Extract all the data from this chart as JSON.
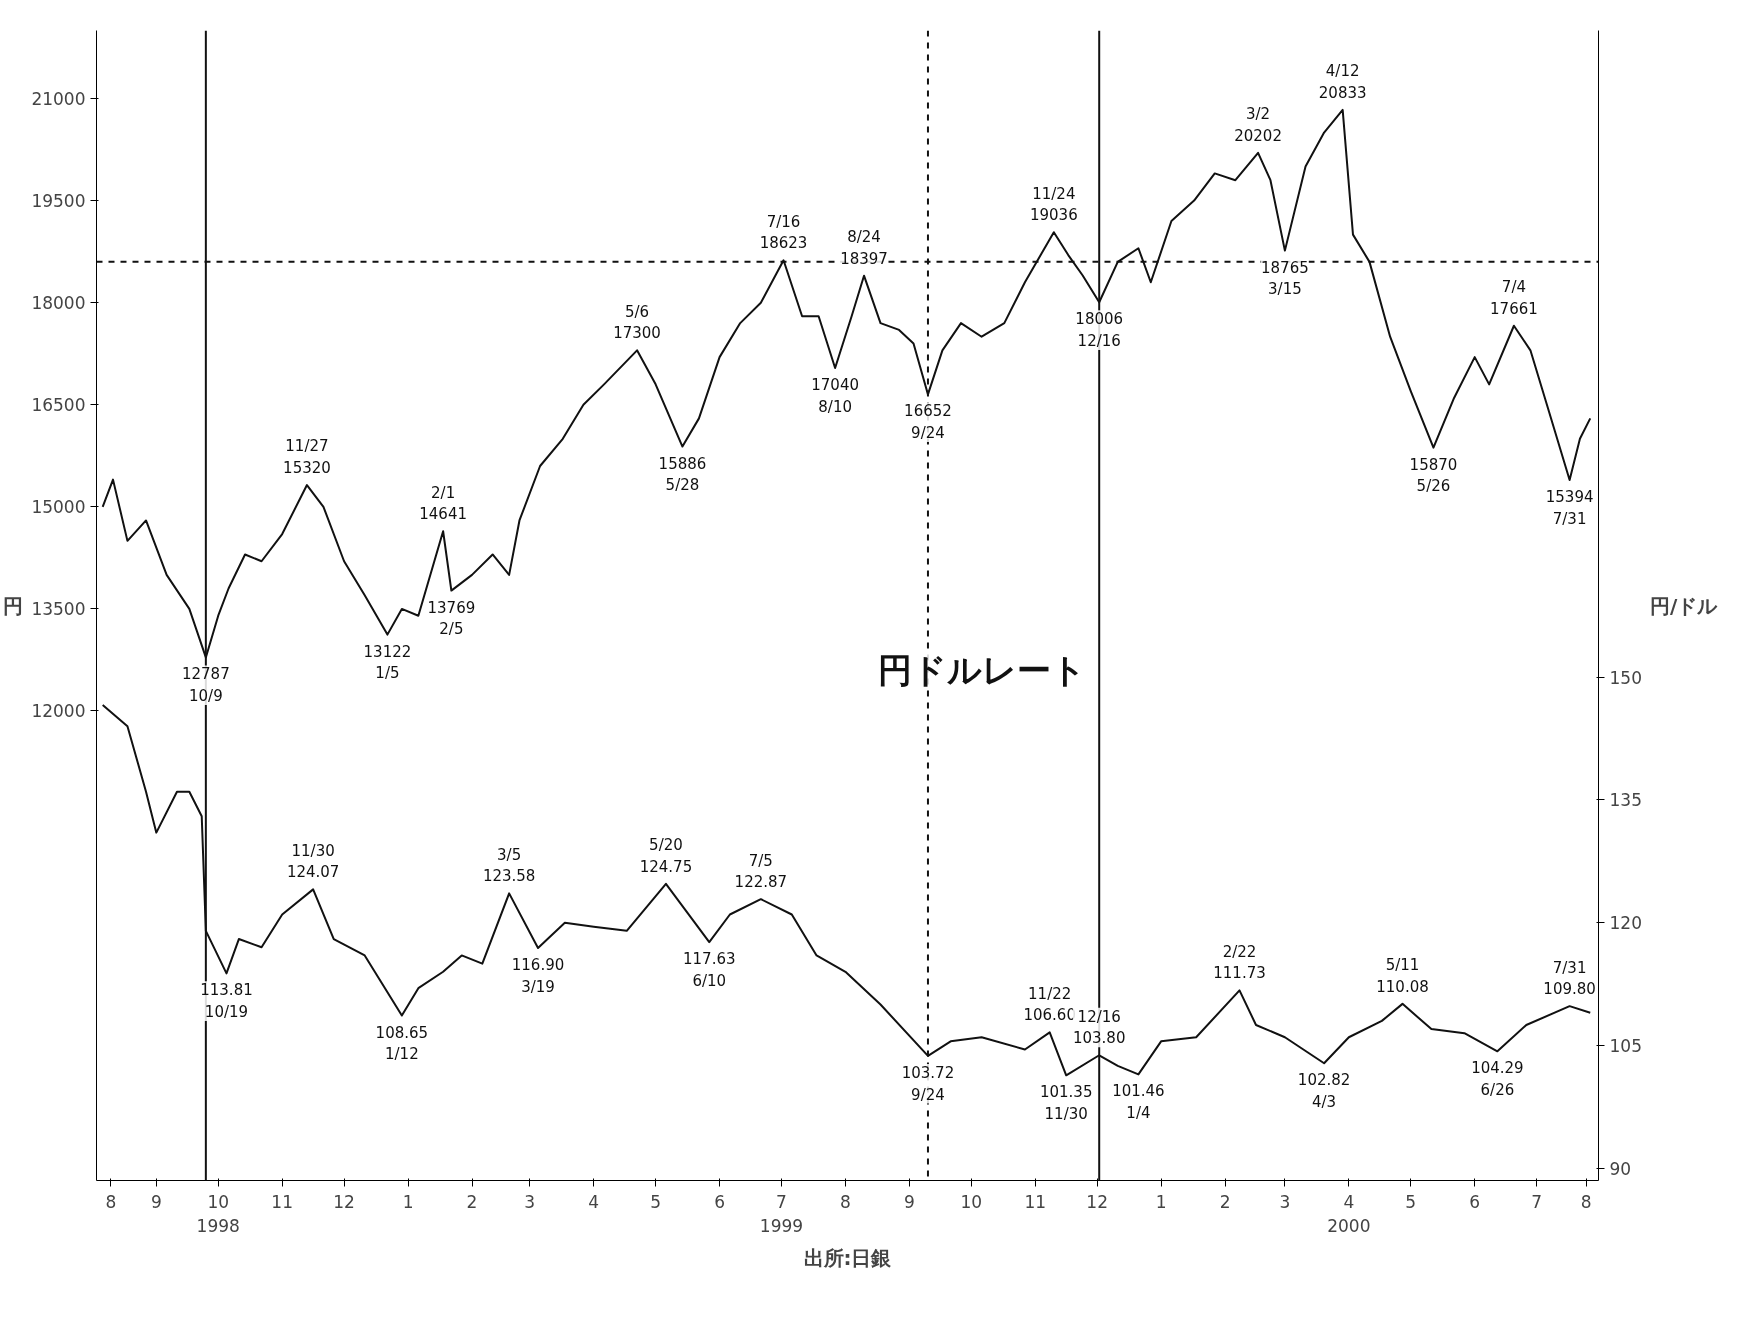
{
  "chart_data": {
    "type": "line",
    "ylabel": "円",
    "y2label": "円/ドル",
    "grid": false,
    "marker": "none",
    "xlim": [
      "1998-08-17",
      "2000-08-14"
    ],
    "xticks": [
      {
        "value": "1998-08-24",
        "label": "8"
      },
      {
        "value": "1998-09-15",
        "label": "9"
      },
      {
        "value": "1998-10-15",
        "label": "10\n1998"
      },
      {
        "value": "1998-11-15",
        "label": "11"
      },
      {
        "value": "1998-12-15",
        "label": "12"
      },
      {
        "value": "1999-01-15",
        "label": "1"
      },
      {
        "value": "1999-02-15",
        "label": "2"
      },
      {
        "value": "1999-03-15",
        "label": "3"
      },
      {
        "value": "1999-04-15",
        "label": "4"
      },
      {
        "value": "1999-05-15",
        "label": "5"
      },
      {
        "value": "1999-06-15",
        "label": "6"
      },
      {
        "value": "1999-07-15",
        "label": "7\n1999"
      },
      {
        "value": "1999-08-15",
        "label": "8"
      },
      {
        "value": "1999-09-15",
        "label": "9"
      },
      {
        "value": "1999-10-15",
        "label": "10"
      },
      {
        "value": "1999-11-15",
        "label": "11"
      },
      {
        "value": "1999-12-15",
        "label": "12"
      },
      {
        "value": "2000-01-15",
        "label": "1"
      },
      {
        "value": "2000-02-15",
        "label": "2"
      },
      {
        "value": "2000-03-15",
        "label": "3"
      },
      {
        "value": "2000-04-15",
        "label": "4\n2000"
      },
      {
        "value": "2000-05-15",
        "label": "5"
      },
      {
        "value": "2000-06-15",
        "label": "6"
      },
      {
        "value": "2000-07-15",
        "label": "7"
      },
      {
        "value": "2000-08-08",
        "label": "8"
      }
    ],
    "ylim": [
      5100,
      22000
    ],
    "yticks": [
      12000,
      13500,
      15000,
      16500,
      18000,
      19500,
      21000
    ],
    "y2lim": [
      88.5,
      229
    ],
    "y2ticks": [
      90,
      105,
      120,
      135,
      150
    ],
    "series": [
      {
        "color": "#111111",
        "x": [
          "1998-08-20",
          "1998-08-25",
          "1998-09-01",
          "1998-09-10",
          "1998-09-20",
          "1998-10-01",
          "1998-10-09",
          "1998-10-15",
          "1998-10-20",
          "1998-10-28",
          "1998-11-05",
          "1998-11-15",
          "1998-11-27",
          "1998-12-05",
          "1998-12-15",
          "1998-12-25",
          "1999-01-05",
          "1999-01-12",
          "1999-01-20",
          "1999-02-01",
          "1999-02-05",
          "1999-02-15",
          "1999-02-25",
          "1999-03-05",
          "1999-03-10",
          "1999-03-20",
          "1999-03-31",
          "1999-04-10",
          "1999-04-20",
          "1999-05-06",
          "1999-05-15",
          "1999-05-28",
          "1999-06-05",
          "1999-06-15",
          "1999-06-25",
          "1999-07-05",
          "1999-07-16",
          "1999-07-25",
          "1999-08-02",
          "1999-08-10",
          "1999-08-18",
          "1999-08-24",
          "1999-09-01",
          "1999-09-10",
          "1999-09-17",
          "1999-09-24",
          "1999-10-01",
          "1999-10-10",
          "1999-10-20",
          "1999-10-31",
          "1999-11-10",
          "1999-11-24",
          "1999-12-01",
          "1999-12-08",
          "1999-12-16",
          "1999-12-25",
          "2000-01-04",
          "2000-01-10",
          "2000-01-20",
          "2000-01-31",
          "2000-02-10",
          "2000-02-20",
          "2000-03-02",
          "2000-03-08",
          "2000-03-15",
          "2000-03-25",
          "2000-04-03",
          "2000-04-12",
          "2000-04-17",
          "2000-04-25",
          "2000-05-05",
          "2000-05-15",
          "2000-05-26",
          "2000-06-05",
          "2000-06-15",
          "2000-06-22",
          "2000-07-04",
          "2000-07-12",
          "2000-07-20",
          "2000-07-31",
          "2000-08-05",
          "2000-08-10"
        ],
        "values": [
          15000,
          15400,
          14500,
          14800,
          14000,
          13500,
          12787,
          13400,
          13800,
          14300,
          14200,
          14600,
          15320,
          15000,
          14200,
          13700,
          13122,
          13500,
          13400,
          14641,
          13769,
          14000,
          14300,
          14000,
          14800,
          15600,
          16000,
          16500,
          16800,
          17300,
          16800,
          15886,
          16300,
          17200,
          17700,
          18000,
          18623,
          17800,
          17800,
          17040,
          17800,
          18397,
          17700,
          17600,
          17400,
          16652,
          17300,
          17700,
          17500,
          17700,
          18300,
          19036,
          18700,
          18400,
          18006,
          18600,
          18800,
          18300,
          19200,
          19500,
          19900,
          19800,
          20202,
          19800,
          18765,
          20000,
          20500,
          20833,
          19000,
          18600,
          17500,
          16700,
          15870,
          16600,
          17200,
          16800,
          17661,
          17300,
          16500,
          15394,
          16000,
          16300
        ]
      },
      {
        "name": "円ドルレート",
        "color": "#111111",
        "axis": "y2",
        "x": [
          "1998-08-20",
          "1998-09-01",
          "1998-09-10",
          "1998-09-15",
          "1998-09-25",
          "1998-10-01",
          "1998-10-07",
          "1998-10-09",
          "1998-10-19",
          "1998-10-25",
          "1998-11-05",
          "1998-11-15",
          "1998-11-30",
          "1998-12-10",
          "1998-12-25",
          "1999-01-12",
          "1999-01-20",
          "1999-02-01",
          "1999-02-10",
          "1999-02-20",
          "1999-03-05",
          "1999-03-19",
          "1999-04-01",
          "1999-04-15",
          "1999-05-01",
          "1999-05-20",
          "1999-06-10",
          "1999-06-20",
          "1999-07-05",
          "1999-07-20",
          "1999-08-01",
          "1999-08-15",
          "1999-09-01",
          "1999-09-24",
          "1999-10-05",
          "1999-10-20",
          "1999-11-10",
          "1999-11-22",
          "1999-11-30",
          "1999-12-16",
          "1999-12-25",
          "2000-01-04",
          "2000-01-15",
          "2000-02-01",
          "2000-02-22",
          "2000-03-01",
          "2000-03-15",
          "2000-04-03",
          "2000-04-15",
          "2000-05-01",
          "2000-05-11",
          "2000-05-25",
          "2000-06-10",
          "2000-06-26",
          "2000-07-10",
          "2000-07-31",
          "2000-08-10"
        ],
        "values": [
          146.6,
          144,
          136,
          131,
          136,
          136,
          133,
          119,
          113.81,
          118,
          117,
          121,
          124.07,
          118,
          116,
          108.65,
          112,
          114,
          116,
          115,
          123.58,
          116.9,
          120,
          119.5,
          119,
          124.75,
          117.63,
          121,
          122.87,
          121,
          116,
          114,
          110,
          103.72,
          105.5,
          106,
          104.5,
          106.6,
          101.35,
          103.8,
          102.5,
          101.46,
          105.5,
          106,
          111.73,
          107.5,
          106,
          102.82,
          106,
          108,
          110.08,
          107,
          106.5,
          104.29,
          107.5,
          109.8,
          109
        ],
        "value_labels": [
          null,
          null,
          null,
          null,
          null,
          null,
          null,
          null,
          "113.81\n10/19",
          null,
          null,
          null,
          "11/30\n124.07",
          null,
          null,
          "108.65\n1/12",
          null,
          null,
          null,
          null,
          "3/5\n123.58",
          "116.90\n3/19",
          null,
          null,
          null,
          "5/20\n124.75",
          "117.63\n6/10",
          null,
          "7/5\n122.87",
          null,
          null,
          null,
          null,
          "103.72\n9/24",
          null,
          null,
          null,
          "11/22\n106.60",
          "101.35\n11/30",
          "12/16\n103.80",
          null,
          "101.46\n1/4",
          null,
          null,
          "2/22\n111.73",
          null,
          null,
          "102.82\n4/3",
          null,
          null,
          "5/11\n110.08",
          null,
          null,
          "104.29\n6/26",
          null,
          "7/31\n109.80",
          null
        ]
      }
    ],
    "ref_lines": [
      {
        "axis": "x",
        "value": "1998-10-09",
        "line_style": "solid"
      },
      {
        "axis": "x",
        "value": "1999-12-16",
        "line_style": "solid"
      },
      {
        "axis": "x",
        "value": "1999-09-24",
        "line_style": "dashed"
      },
      {
        "axis": "y",
        "value": 18600,
        "line_style": "dashed"
      }
    ],
    "annotations": [
      {
        "text": "12787\n10/9",
        "x": "1998-10-09",
        "y": 12787
      },
      {
        "text": "11/27\n15320",
        "x": "1998-11-27",
        "y": 15320
      },
      {
        "text": "13122\n1/5",
        "x": "1999-01-05",
        "y": 13122
      },
      {
        "text": "2/1\n14641",
        "x": "1999-02-01",
        "y": 14641
      },
      {
        "text": "13769\n2/5",
        "x": "1999-02-05",
        "y": 13769
      },
      {
        "text": "5/6\n17300",
        "x": "1999-05-06",
        "y": 17300
      },
      {
        "text": "15886\n5/28",
        "x": "1999-05-28",
        "y": 15886
      },
      {
        "text": "7/16\n18623",
        "x": "1999-07-16",
        "y": 18623
      },
      {
        "text": "17040\n8/10",
        "x": "1999-08-10",
        "y": 17040
      },
      {
        "text": "8/24\n18397",
        "x": "1999-08-24",
        "y": 18397
      },
      {
        "text": "16652\n9/24",
        "x": "1999-09-24",
        "y": 16652
      },
      {
        "text": "11/24\n19036",
        "x": "1999-11-24",
        "y": 19036
      },
      {
        "text": "18006\n12/16",
        "x": "1999-12-16",
        "y": 18006
      },
      {
        "text": "3/2\n20202",
        "x": "2000-03-02",
        "y": 20202
      },
      {
        "text": "18765\n3/15",
        "x": "2000-03-15",
        "y": 18765
      },
      {
        "text": "4/12\n20833",
        "x": "2000-04-12",
        "y": 20833
      },
      {
        "text": "15870\n5/26",
        "x": "2000-05-26",
        "y": 15870
      },
      {
        "text": "7/4\n17661",
        "x": "2000-07-04",
        "y": 17661
      },
      {
        "text": "15394\n7/31",
        "x": "2000-07-31",
        "y": 15394
      },
      "出所:日銀"
    ]
  }
}
